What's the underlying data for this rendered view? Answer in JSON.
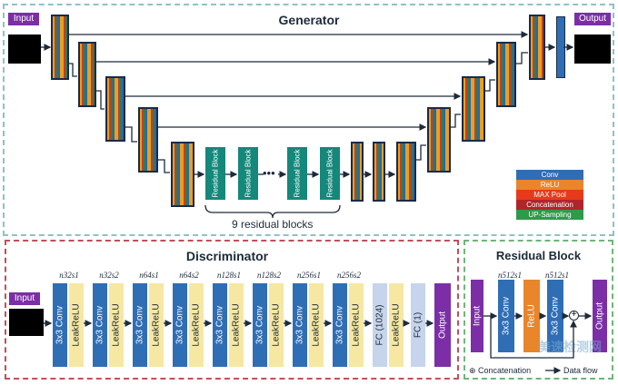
{
  "generator": {
    "title": "Generator",
    "input_label": "Input",
    "output_label": "Output",
    "residual_block_label": "Residual Block",
    "ellipsis": "•••",
    "residual_caption": "9 residual blocks",
    "legend": [
      {
        "label": "Conv",
        "color": "#2f6eb5"
      },
      {
        "label": "ReLU",
        "color": "#e9852a"
      },
      {
        "label": "MAX Pool",
        "color": "#e83a1a"
      },
      {
        "label": "Concatenation",
        "color": "#b0252a"
      },
      {
        "label": "UP-Sampling",
        "color": "#2e9a4a"
      }
    ]
  },
  "discriminator": {
    "title": "Discriminator",
    "input_label": "Input",
    "conv_label": "3x3 Conv",
    "lrelu_label": "LeakReLU",
    "fc1_label": "FC (1024)",
    "fc2_label": "FC (1)",
    "output_label": "Output",
    "stage_labels": [
      "n32s1",
      "n32s2",
      "n64s1",
      "n64s2",
      "n128s1",
      "n128s2",
      "n256s1",
      "n256s2"
    ]
  },
  "residual": {
    "title": "Residual Block",
    "input_label": "Input",
    "conv_label": "3x3 Conv",
    "relu_label": "ReLU",
    "output_label": "Output",
    "stage_labels": [
      "n512s1",
      "n512s1"
    ],
    "concat_legend": "⊕ Concatenation",
    "flow_legend": "Data flow",
    "colors": {
      "conv": "#2f6eb5",
      "relu": "#e9852a",
      "output": "#7b2ea6"
    }
  },
  "watermark": "美速检测网"
}
